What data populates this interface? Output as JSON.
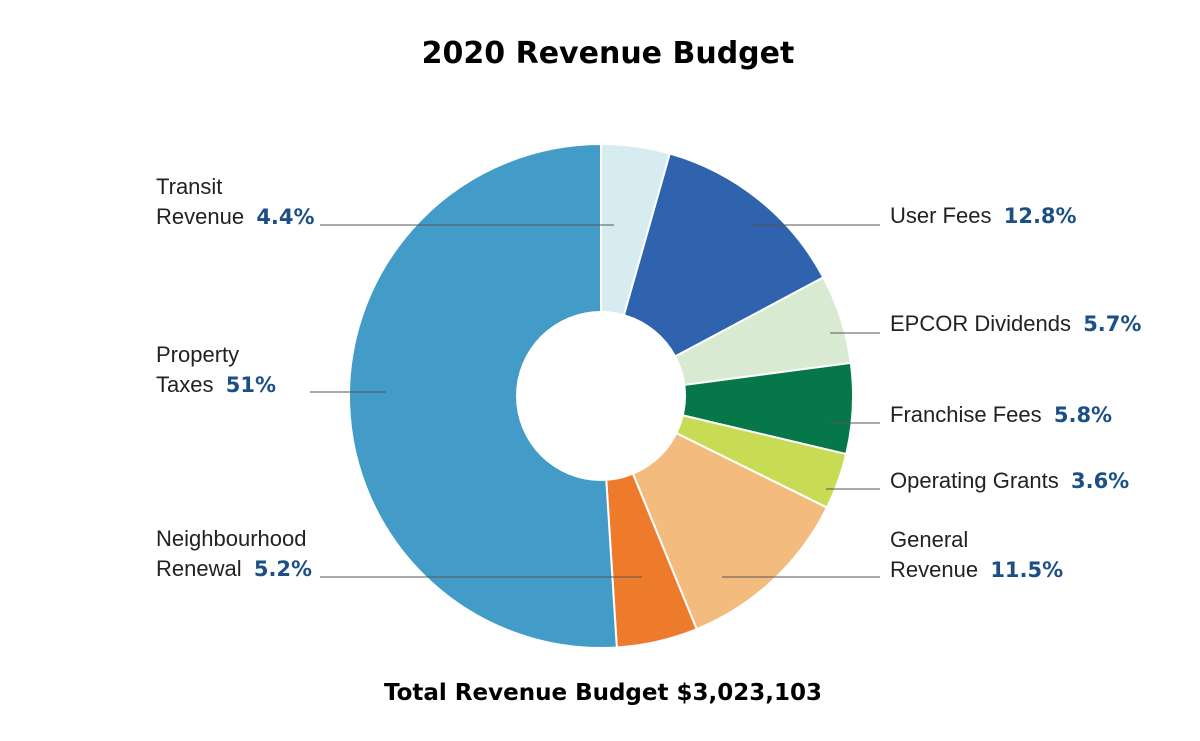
{
  "chart_data": {
    "type": "pie",
    "title": "2020 Revenue Budget",
    "footer": "Total Revenue Budget $3,023,103",
    "donut": true,
    "categories": [
      "Transit Revenue",
      "User Fees",
      "EPCOR Dividends",
      "Franchise Fees",
      "Operating Grants",
      "General Revenue",
      "Neighbourhood Renewal",
      "Property Taxes"
    ],
    "values": [
      4.4,
      12.8,
      5.7,
      5.8,
      3.6,
      11.5,
      5.2,
      51
    ],
    "value_labels": [
      "4.4%",
      "12.8%",
      "5.7%",
      "5.8%",
      "3.6%",
      "11.5%",
      "5.2%",
      "51%"
    ],
    "colors": [
      "#d6ecf1",
      "#2f63ae",
      "#d9ead2",
      "#067748",
      "#c8db55",
      "#f4bb7f",
      "#ee7a2c",
      "#439cc8"
    ]
  },
  "labels": {
    "transit": {
      "line1": "Transit",
      "line2": "Revenue",
      "pct": "4.4%"
    },
    "user_fees": {
      "line1": "User Fees",
      "pct": "12.8%"
    },
    "epcor": {
      "line1": "EPCOR Dividends",
      "pct": "5.7%"
    },
    "franchise": {
      "line1": "Franchise Fees",
      "pct": "5.8%"
    },
    "grants": {
      "line1": "Operating Grants",
      "pct": "3.6%"
    },
    "general": {
      "line1": "General",
      "line2": "Revenue",
      "pct": "11.5%"
    },
    "neighbourhood": {
      "line1": "Neighbourhood",
      "line2": "Renewal",
      "pct": "5.2%"
    },
    "property": {
      "line1": "Property",
      "line2": "Taxes",
      "pct": "51%"
    }
  }
}
